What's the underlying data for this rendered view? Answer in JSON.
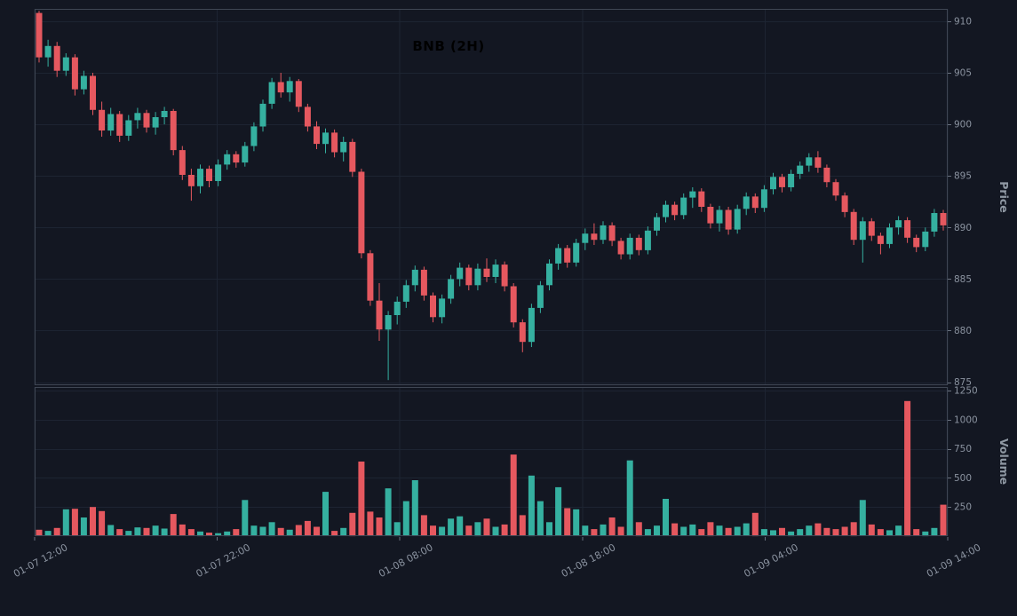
{
  "chart_data": {
    "type": "candlestick",
    "title": "BNB (2H)",
    "symbol": "BNB",
    "interval": "2H",
    "legend_position": "none",
    "grid": true,
    "x_tick_labels": [
      "01-07 12:00",
      "01-07 22:00",
      "01-08 08:00",
      "01-08 18:00",
      "01-09 04:00",
      "01-09 14:00"
    ],
    "price_axis": {
      "label": "Price",
      "ticks": [
        875,
        880,
        885,
        890,
        895,
        900,
        905,
        910
      ],
      "range": [
        874.7,
        911.2
      ]
    },
    "volume_axis": {
      "label": "Volume",
      "ticks": [
        250,
        500,
        750,
        1000,
        1250
      ],
      "range": [
        0,
        1280
      ]
    },
    "colors": {
      "up": "#35b0a0",
      "down": "#e5585f",
      "background": "#131722",
      "grid": "#1d2432",
      "spine": "#3f4654",
      "tick_text": "#8b93a0",
      "axis_label_text": "#8f98a3",
      "title_text": "#000000"
    },
    "candles": [
      [
        910.8,
        911.0,
        906.0,
        906.5
      ],
      [
        906.5,
        908.2,
        905.6,
        907.6
      ],
      [
        907.6,
        908.0,
        904.6,
        905.2
      ],
      [
        905.2,
        906.9,
        904.7,
        906.5
      ],
      [
        906.5,
        906.8,
        902.8,
        903.4
      ],
      [
        903.4,
        905.2,
        902.9,
        904.7
      ],
      [
        904.7,
        905.0,
        900.9,
        901.4
      ],
      [
        901.4,
        902.2,
        898.8,
        899.4
      ],
      [
        899.4,
        901.6,
        898.9,
        901.0
      ],
      [
        901.0,
        901.3,
        898.3,
        898.9
      ],
      [
        898.9,
        900.9,
        898.4,
        900.4
      ],
      [
        900.4,
        901.6,
        899.6,
        901.1
      ],
      [
        901.1,
        901.4,
        899.2,
        899.7
      ],
      [
        899.7,
        901.2,
        899.0,
        900.7
      ],
      [
        900.7,
        901.7,
        900.0,
        901.3
      ],
      [
        901.3,
        901.5,
        897.0,
        897.5
      ],
      [
        897.5,
        897.9,
        894.6,
        895.1
      ],
      [
        895.1,
        895.7,
        892.6,
        894.0
      ],
      [
        894.0,
        896.1,
        893.3,
        895.7
      ],
      [
        895.7,
        896.0,
        893.9,
        894.5
      ],
      [
        894.5,
        896.6,
        894.0,
        896.1
      ],
      [
        896.1,
        897.5,
        895.6,
        897.1
      ],
      [
        897.1,
        897.4,
        895.8,
        896.3
      ],
      [
        896.3,
        898.3,
        895.9,
        897.9
      ],
      [
        897.9,
        900.2,
        897.4,
        899.8
      ],
      [
        899.8,
        902.4,
        899.3,
        902.0
      ],
      [
        902.0,
        904.5,
        901.5,
        904.1
      ],
      [
        904.1,
        905.0,
        902.6,
        903.1
      ],
      [
        903.1,
        904.6,
        902.2,
        904.2
      ],
      [
        904.2,
        904.4,
        901.2,
        901.7
      ],
      [
        901.7,
        902.0,
        899.3,
        899.8
      ],
      [
        899.8,
        900.3,
        897.6,
        898.1
      ],
      [
        898.1,
        899.6,
        897.2,
        899.2
      ],
      [
        899.2,
        899.5,
        896.8,
        897.3
      ],
      [
        897.3,
        898.8,
        896.4,
        898.3
      ],
      [
        898.3,
        898.6,
        894.9,
        895.4
      ],
      [
        895.4,
        895.7,
        887.0,
        887.5
      ],
      [
        887.5,
        887.8,
        882.4,
        882.9
      ],
      [
        882.9,
        884.6,
        879.0,
        880.1
      ],
      [
        880.1,
        881.9,
        875.2,
        881.5
      ],
      [
        881.5,
        883.3,
        880.6,
        882.8
      ],
      [
        882.8,
        884.9,
        882.2,
        884.4
      ],
      [
        884.4,
        886.3,
        883.8,
        885.9
      ],
      [
        885.9,
        886.2,
        882.9,
        883.4
      ],
      [
        883.4,
        883.7,
        880.8,
        881.3
      ],
      [
        881.3,
        883.5,
        880.7,
        883.1
      ],
      [
        883.1,
        885.4,
        882.6,
        885.0
      ],
      [
        885.0,
        886.6,
        884.3,
        886.1
      ],
      [
        886.1,
        886.4,
        883.9,
        884.4
      ],
      [
        884.4,
        886.5,
        883.9,
        886.0
      ],
      [
        886.0,
        887.0,
        884.7,
        885.2
      ],
      [
        885.2,
        886.9,
        884.6,
        886.4
      ],
      [
        886.4,
        886.7,
        883.8,
        884.3
      ],
      [
        884.3,
        884.6,
        880.3,
        880.8
      ],
      [
        880.8,
        881.1,
        877.9,
        878.9
      ],
      [
        878.9,
        882.6,
        878.4,
        882.2
      ],
      [
        882.2,
        884.8,
        881.7,
        884.4
      ],
      [
        884.4,
        886.9,
        883.9,
        886.5
      ],
      [
        886.5,
        888.4,
        885.9,
        888.0
      ],
      [
        888.0,
        888.3,
        886.1,
        886.6
      ],
      [
        886.6,
        888.9,
        886.2,
        888.5
      ],
      [
        888.5,
        889.9,
        887.8,
        889.4
      ],
      [
        889.4,
        890.4,
        888.3,
        888.8
      ],
      [
        888.8,
        890.6,
        888.4,
        890.2
      ],
      [
        890.2,
        890.5,
        888.2,
        888.7
      ],
      [
        888.7,
        889.0,
        886.9,
        887.4
      ],
      [
        887.4,
        889.4,
        886.9,
        889.0
      ],
      [
        889.0,
        889.3,
        887.3,
        887.8
      ],
      [
        887.8,
        890.1,
        887.4,
        889.7
      ],
      [
        889.7,
        891.4,
        889.2,
        891.0
      ],
      [
        891.0,
        892.6,
        890.5,
        892.2
      ],
      [
        892.2,
        892.5,
        890.7,
        891.2
      ],
      [
        891.2,
        893.3,
        890.8,
        892.9
      ],
      [
        892.9,
        893.9,
        891.9,
        893.5
      ],
      [
        893.5,
        893.8,
        891.5,
        892.0
      ],
      [
        892.0,
        892.3,
        889.9,
        890.4
      ],
      [
        890.4,
        892.1,
        889.6,
        891.7
      ],
      [
        891.7,
        892.0,
        889.3,
        889.8
      ],
      [
        889.8,
        892.2,
        889.4,
        891.8
      ],
      [
        891.8,
        893.4,
        891.2,
        893.0
      ],
      [
        893.0,
        893.3,
        891.4,
        891.9
      ],
      [
        891.9,
        894.1,
        891.5,
        893.7
      ],
      [
        893.7,
        895.3,
        893.2,
        894.9
      ],
      [
        894.9,
        895.2,
        893.4,
        893.9
      ],
      [
        893.9,
        895.6,
        893.5,
        895.2
      ],
      [
        895.2,
        896.4,
        894.7,
        896.0
      ],
      [
        896.0,
        897.2,
        895.4,
        896.8
      ],
      [
        896.8,
        897.4,
        895.3,
        895.8
      ],
      [
        895.8,
        896.1,
        893.9,
        894.4
      ],
      [
        894.4,
        894.7,
        892.6,
        893.1
      ],
      [
        893.1,
        893.4,
        891.0,
        891.5
      ],
      [
        891.5,
        891.8,
        888.3,
        888.8
      ],
      [
        888.8,
        891.0,
        886.6,
        890.6
      ],
      [
        890.6,
        890.9,
        888.7,
        889.2
      ],
      [
        889.2,
        889.5,
        887.4,
        888.4
      ],
      [
        888.4,
        890.4,
        888.0,
        890.0
      ],
      [
        890.0,
        891.1,
        889.3,
        890.7
      ],
      [
        890.7,
        891.0,
        888.5,
        889.0
      ],
      [
        889.0,
        889.3,
        887.6,
        888.1
      ],
      [
        888.1,
        890.0,
        887.7,
        889.6
      ],
      [
        889.6,
        891.8,
        889.1,
        891.4
      ],
      [
        891.4,
        891.7,
        889.7,
        890.2
      ]
    ],
    "volumes": [
      55,
      45,
      70,
      230,
      235,
      160,
      250,
      215,
      95,
      60,
      45,
      75,
      70,
      90,
      65,
      190,
      100,
      60,
      40,
      30,
      25,
      40,
      60,
      310,
      90,
      80,
      120,
      70,
      55,
      95,
      130,
      80,
      380,
      45,
      70,
      200,
      640,
      210,
      160,
      410,
      120,
      300,
      480,
      180,
      90,
      80,
      150,
      170,
      90,
      120,
      150,
      80,
      100,
      700,
      180,
      520,
      300,
      120,
      420,
      240,
      230,
      90,
      60,
      100,
      160,
      80,
      650,
      120,
      60,
      90,
      320,
      110,
      80,
      100,
      60,
      120,
      90,
      70,
      80,
      110,
      200,
      60,
      50,
      70,
      40,
      60,
      90,
      110,
      70,
      60,
      80,
      120,
      310,
      100,
      60,
      50,
      90,
      1160,
      60,
      40,
      70,
      270
    ]
  }
}
